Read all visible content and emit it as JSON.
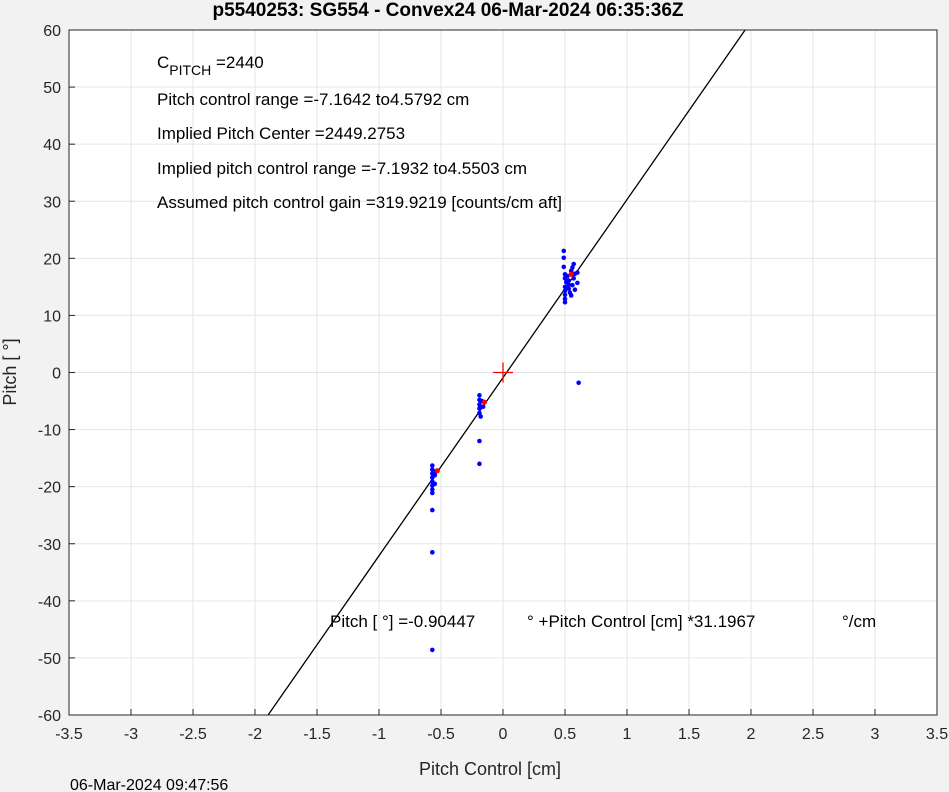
{
  "chart_data": {
    "type": "scatter",
    "title": "p5540253: SG554 - Convex24 06-Mar-2024 06:35:36Z",
    "xlabel": "Pitch Control [cm]",
    "ylabel": "Pitch [  °]",
    "xlim": [
      -3.5,
      3.5
    ],
    "ylim": [
      -60,
      60
    ],
    "xticks": [
      -3.5,
      -3,
      -2.5,
      -2,
      -1.5,
      -1,
      -0.5,
      0,
      0.5,
      1,
      1.5,
      2,
      2.5,
      3,
      3.5
    ],
    "yticks": [
      -60,
      -50,
      -40,
      -30,
      -20,
      -10,
      0,
      10,
      20,
      30,
      40,
      50,
      60
    ],
    "grid": true,
    "colors": {
      "data": "#0000ff",
      "highlight": "#ff0000",
      "fit": "#000000"
    },
    "fit": {
      "intercept": -0.90447,
      "slope": 31.1967
    },
    "center_marker": [
      0,
      0
    ],
    "points": [
      [
        0.49,
        21.3
      ],
      [
        0.49,
        20.1
      ],
      [
        0.49,
        18.5
      ],
      [
        0.5,
        17.2
      ],
      [
        0.5,
        16.5
      ],
      [
        0.51,
        15.8
      ],
      [
        0.5,
        15
      ],
      [
        0.5,
        14.3
      ],
      [
        0.5,
        13.6
      ],
      [
        0.5,
        12.9
      ],
      [
        0.5,
        12.3
      ],
      [
        0.52,
        16.9
      ],
      [
        0.53,
        16.1
      ],
      [
        0.53,
        15.4
      ],
      [
        0.53,
        14.7
      ],
      [
        0.54,
        14
      ],
      [
        0.55,
        13.5
      ],
      [
        0.55,
        17.8
      ],
      [
        0.56,
        18.4
      ],
      [
        0.57,
        19
      ],
      [
        0.57,
        16.5
      ],
      [
        0.56,
        15.3
      ],
      [
        0.58,
        14.5
      ],
      [
        0.58,
        17.3
      ],
      [
        0.6,
        17.5
      ],
      [
        0.6,
        15.7
      ],
      [
        0.61,
        -1.8
      ],
      [
        -0.19,
        -4
      ],
      [
        -0.19,
        -4.8
      ],
      [
        -0.19,
        -5.6
      ],
      [
        -0.19,
        -6.3
      ],
      [
        -0.19,
        -7.1
      ],
      [
        -0.18,
        -7.7
      ],
      [
        -0.17,
        -5
      ],
      [
        -0.16,
        -6
      ],
      [
        -0.19,
        -12
      ],
      [
        -0.19,
        -16
      ],
      [
        -0.57,
        -16.3
      ],
      [
        -0.57,
        -17
      ],
      [
        -0.57,
        -17.7
      ],
      [
        -0.57,
        -18.4
      ],
      [
        -0.57,
        -19.1
      ],
      [
        -0.57,
        -19.8
      ],
      [
        -0.57,
        -20.5
      ],
      [
        -0.57,
        -21.1
      ],
      [
        -0.55,
        -18
      ],
      [
        -0.55,
        -19.5
      ],
      [
        -0.54,
        -17.3
      ],
      [
        -0.57,
        -24.1
      ],
      [
        -0.57,
        -31.5
      ],
      [
        -0.57,
        -48.6
      ]
    ],
    "highlight_points": [
      [
        0.55,
        17.2
      ],
      [
        -0.15,
        -5.2
      ],
      [
        -0.53,
        -17.2
      ]
    ],
    "annotations": {
      "c_pitch_main": "C",
      "c_pitch_sub": "PITCH",
      "c_pitch_value": " =2440",
      "line2": "Pitch control range =-7.1642 to4.5792 cm",
      "line3": "Implied Pitch Center =2449.2753",
      "line4": "Implied pitch control range =-7.1932 to4.5503 cm",
      "line5": "Assumed pitch control gain =319.9219 [counts/cm aft]",
      "eq_part1": "Pitch [  °] =-0.90447",
      "eq_part2": "° +Pitch Control [cm] *31.1967",
      "eq_part3": "°/cm"
    }
  },
  "timestamp": "06-Mar-2024 09:47:56"
}
